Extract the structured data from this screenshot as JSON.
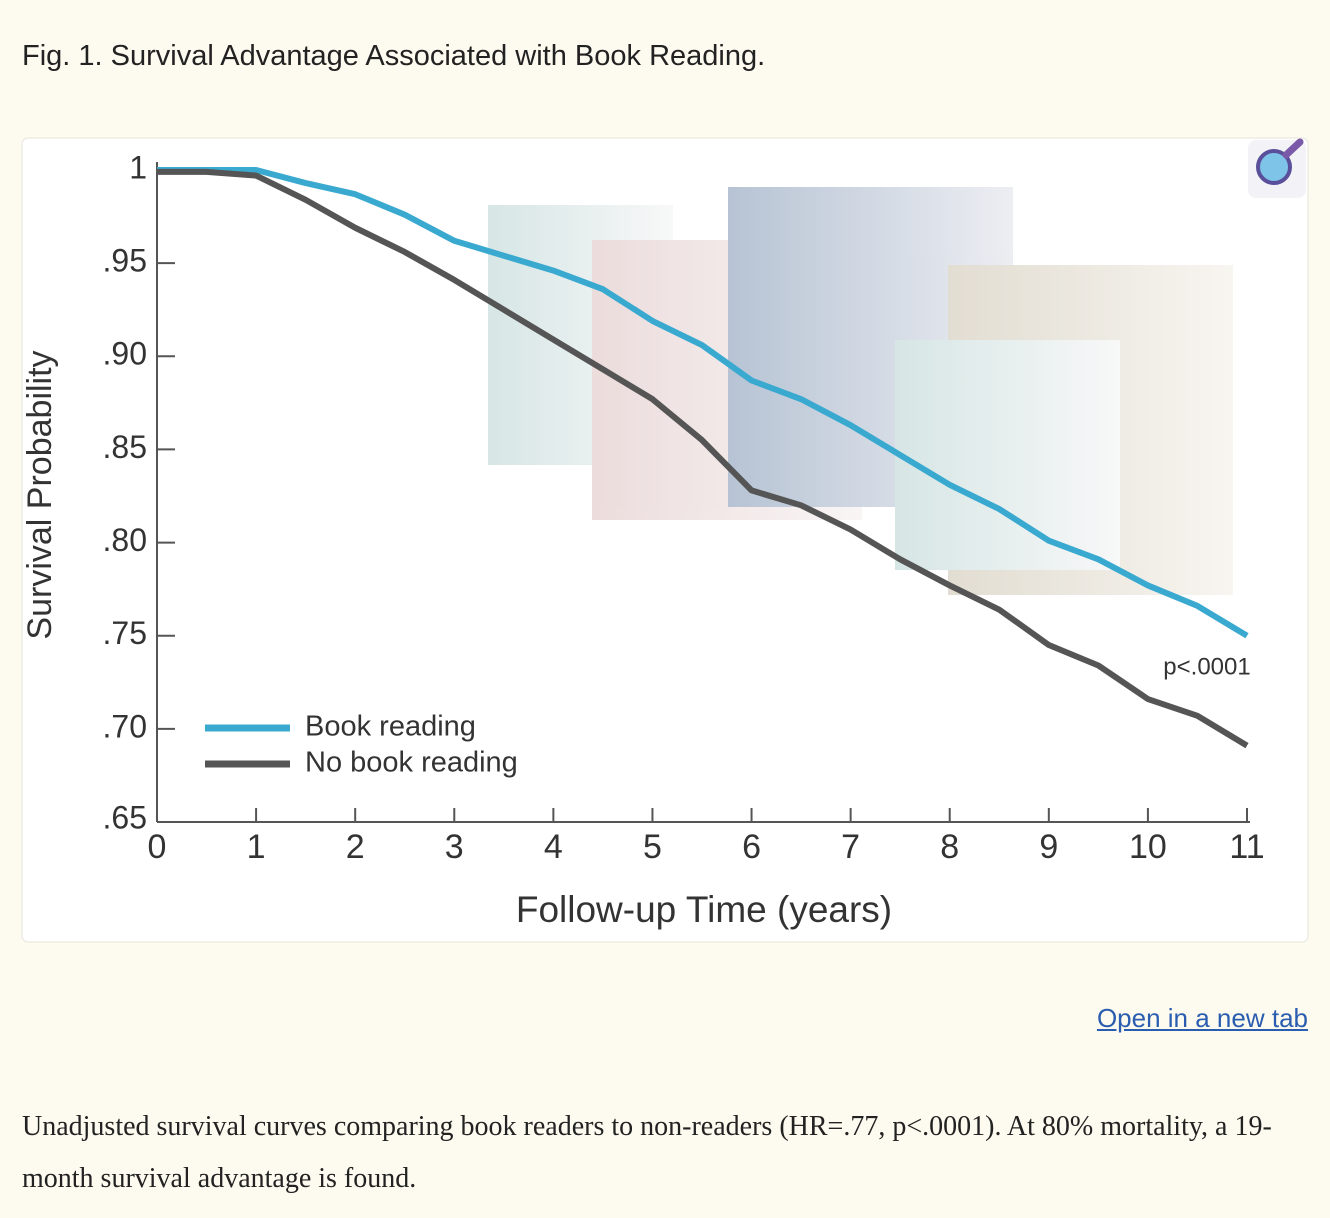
{
  "page": {
    "figure_title": "Fig. 1. Survival Advantage Associated with Book Reading.",
    "link": "Open in a new tab",
    "caption": "Unadjusted survival curves comparing book readers to non-readers (HR=.77, p<.0001). At 80% mortality, a 19-month survival advantage is found."
  },
  "chart_data": {
    "type": "line",
    "xlabel": "Follow-up Time (years)",
    "ylabel": "Survival Probability",
    "annotation": "p<.0001",
    "x": [
      0,
      0.5,
      1,
      1.5,
      2,
      2.5,
      3,
      3.5,
      4,
      4.5,
      5,
      5.5,
      6,
      6.5,
      7,
      7.5,
      8,
      8.5,
      9,
      9.5,
      10,
      10.5,
      11
    ],
    "series": [
      {
        "name": "Book reading",
        "color": "#3aa9d0",
        "values": [
          1.0,
          1.0,
          1.0,
          0.993,
          0.987,
          0.976,
          0.962,
          0.954,
          0.946,
          0.936,
          0.919,
          0.906,
          0.887,
          0.877,
          0.863,
          0.847,
          0.831,
          0.818,
          0.801,
          0.791,
          0.777,
          0.766,
          0.75
        ]
      },
      {
        "name": "No book reading",
        "color": "#555555",
        "values": [
          0.999,
          0.999,
          0.997,
          0.984,
          0.969,
          0.956,
          0.941,
          0.925,
          0.909,
          0.893,
          0.877,
          0.855,
          0.828,
          0.82,
          0.807,
          0.791,
          0.777,
          0.764,
          0.745,
          0.734,
          0.716,
          0.707,
          0.691
        ]
      }
    ],
    "xlim": [
      0,
      11
    ],
    "xticks": [
      0,
      1,
      2,
      3,
      4,
      5,
      6,
      7,
      8,
      9,
      10,
      11
    ],
    "ylim": [
      0.65,
      1
    ],
    "yticks": [
      {
        "value": 0.65,
        "label": ".65"
      },
      {
        "value": 0.7,
        "label": ".70"
      },
      {
        "value": 0.75,
        "label": ".75"
      },
      {
        "value": 0.8,
        "label": ".80"
      },
      {
        "value": 0.85,
        "label": ".85"
      },
      {
        "value": 0.9,
        "label": ".90"
      },
      {
        "value": 0.95,
        "label": ".95"
      },
      1
    ],
    "grid": false
  }
}
